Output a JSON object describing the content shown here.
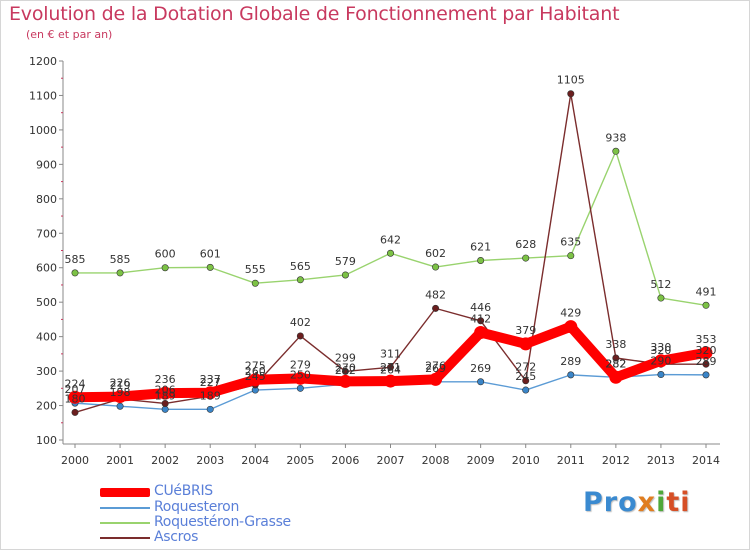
{
  "title": "Evolution de la Dotation Globale de Fonctionnement par Habitant",
  "subtitle": "(en € et par an)",
  "brand": {
    "p1": "Pro",
    "p2": "x",
    "p3": "i",
    "p4": "ti"
  },
  "legend": [
    {
      "name": "CUéBRIS",
      "color": "#ff0000"
    },
    {
      "name": "Roquesteron",
      "color": "#5b9bd5"
    },
    {
      "name": "Roquestéron-Grasse",
      "color": "#8fd16a"
    },
    {
      "name": "Ascros",
      "color": "#7b2d2d"
    }
  ],
  "chart_data": {
    "type": "line",
    "title": "Evolution de la Dotation Globale de Fonctionnement par Habitant",
    "ylabel": "(en € et par an)",
    "xlabel": "",
    "x": [
      "2000",
      "2001",
      "2002",
      "2003",
      "2004",
      "2005",
      "2006",
      "2007",
      "2008",
      "2009",
      "2010",
      "2011",
      "2012",
      "2013",
      "2014"
    ],
    "yticks": [
      "100",
      "200",
      "300",
      "400",
      "500",
      "600",
      "700",
      "800",
      "900",
      "1000",
      "1100",
      "1200"
    ],
    "ylim": [
      100,
      1200
    ],
    "grid": false,
    "series": [
      {
        "name": "CUéBRIS",
        "color": "#ff0000",
        "point_color": "#ff0000",
        "values": [
          224,
          226,
          236,
          237,
          275,
          279,
          270,
          271,
          276,
          412,
          379,
          429,
          282,
          330,
          353
        ],
        "labels": [
          "224",
          "226",
          "236",
          "237",
          "275",
          "279",
          "270",
          "271",
          "276",
          "412",
          "379",
          "429",
          "282",
          "330",
          "353"
        ]
      },
      {
        "name": "Roquesteron",
        "color": "#5b9bd5",
        "point_color": "#3a85c8",
        "values": [
          207,
          198,
          189,
          189,
          245,
          250,
          262,
          264,
          269,
          269,
          245,
          289,
          282,
          290,
          289
        ],
        "labels": [
          "207",
          "198",
          "189",
          "189",
          "245",
          "250",
          "262",
          "264",
          "269",
          "269",
          "245",
          "289",
          "282",
          "290",
          "289"
        ]
      },
      {
        "name": "Roquestéron-Grasse",
        "color": "#99d36e",
        "point_color": "#7cc245",
        "values": [
          585,
          585,
          600,
          601,
          555,
          565,
          579,
          642,
          602,
          621,
          628,
          635,
          938,
          512,
          491
        ],
        "labels": [
          "585",
          "585",
          "600",
          "601",
          "555",
          "565",
          "579",
          "642",
          "602",
          "621",
          "628",
          "635",
          "938",
          "512",
          "491"
        ]
      },
      {
        "name": "Ascros",
        "color": "#7b2d2d",
        "point_color": "#6b1e1e",
        "values": [
          180,
          219,
          206,
          227,
          260,
          402,
          299,
          311,
          482,
          446,
          272,
          1105,
          338,
          320,
          320
        ],
        "labels": [
          "180",
          "219",
          "206",
          "227",
          "260",
          "402",
          "299",
          "311",
          "482",
          "446",
          "272",
          "1105",
          "338",
          "320",
          "320"
        ]
      }
    ]
  }
}
